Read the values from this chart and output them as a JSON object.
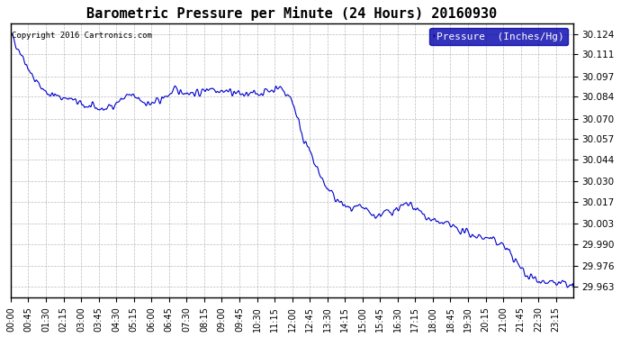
{
  "title": "Barometric Pressure per Minute (24 Hours) 20160930",
  "copyright": "Copyright 2016 Cartronics.com",
  "legend_label": "Pressure  (Inches/Hg)",
  "line_color": "#0000cc",
  "background_color": "#ffffff",
  "plot_bg_color": "#ffffff",
  "grid_color": "#aaaaaa",
  "legend_bg": "#0000aa",
  "legend_text_color": "#ffffff",
  "yticks": [
    29.963,
    29.976,
    29.99,
    30.003,
    30.017,
    30.03,
    30.044,
    30.057,
    30.07,
    30.084,
    30.097,
    30.111,
    30.124
  ],
  "ylim": [
    29.956,
    30.131
  ],
  "xtick_labels": [
    "00:00",
    "00:45",
    "01:30",
    "02:15",
    "03:00",
    "03:45",
    "04:30",
    "05:15",
    "06:00",
    "06:45",
    "07:30",
    "08:15",
    "09:00",
    "09:45",
    "10:30",
    "11:15",
    "12:00",
    "12:45",
    "13:30",
    "14:15",
    "15:00",
    "15:45",
    "16:30",
    "17:15",
    "18:00",
    "18:45",
    "19:30",
    "20:15",
    "21:00",
    "21:45",
    "22:30",
    "23:15"
  ],
  "num_points": 1440,
  "key_points": {
    "0": 30.124,
    "30": 30.11,
    "60": 30.095,
    "90": 30.087,
    "120": 30.084,
    "150": 30.083,
    "180": 30.079,
    "210": 30.077,
    "240": 30.076,
    "270": 30.08,
    "300": 30.085,
    "330": 30.082,
    "360": 30.079,
    "390": 30.083,
    "420": 30.088,
    "450": 30.087,
    "480": 30.086,
    "510": 30.09,
    "540": 30.088,
    "570": 30.087,
    "600": 30.085,
    "630": 30.086,
    "660": 30.088,
    "690": 30.09,
    "720": 30.082,
    "750": 30.057,
    "780": 30.04,
    "810": 30.025,
    "840": 30.017,
    "870": 30.012,
    "900": 30.013,
    "930": 30.008,
    "960": 30.01,
    "990": 30.013,
    "1020": 30.015,
    "1050": 30.01,
    "1080": 30.005,
    "1110": 30.003,
    "1140": 30.0,
    "1170": 29.997,
    "1200": 29.995,
    "1230": 29.993,
    "1260": 29.99,
    "1290": 29.98,
    "1320": 29.97,
    "1350": 29.968,
    "1380": 29.965,
    "1410": 29.965,
    "1439": 29.963
  }
}
